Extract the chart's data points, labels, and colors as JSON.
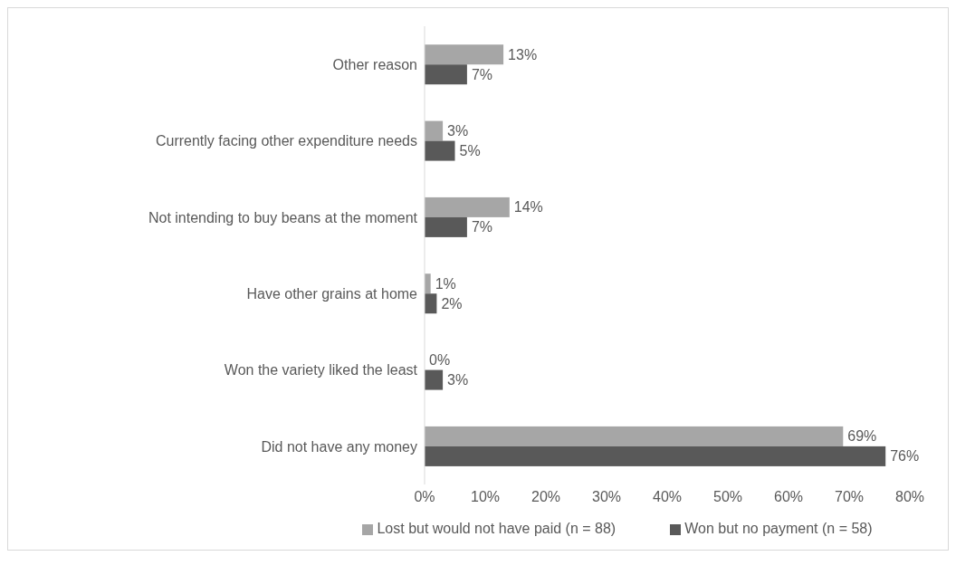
{
  "chart_data": {
    "type": "bar",
    "orientation": "horizontal",
    "categories": [
      "Other reason",
      "Currently facing other expenditure needs",
      "Not intending to buy beans at the moment",
      "Have other grains at home",
      "Won the variety liked the least",
      "Did not have any money"
    ],
    "series": [
      {
        "name": "Lost but would not have paid (n = 88)",
        "color": "#a6a6a6",
        "values": [
          13,
          3,
          14,
          1,
          0,
          69
        ],
        "value_labels": [
          "13%",
          "3%",
          "14%",
          "1%",
          "0%",
          "69%"
        ]
      },
      {
        "name": "Won but no payment (n = 58)",
        "color": "#595959",
        "values": [
          7,
          5,
          7,
          2,
          3,
          76
        ],
        "value_labels": [
          "7%",
          "5%",
          "7%",
          "2%",
          "3%",
          "76%"
        ]
      }
    ],
    "xlim": [
      0,
      80
    ],
    "xticks": [
      {
        "value": 0,
        "label": "0%"
      },
      {
        "value": 10,
        "label": "10%"
      },
      {
        "value": 20,
        "label": "20%"
      },
      {
        "value": 30,
        "label": "30%"
      },
      {
        "value": 40,
        "label": "40%"
      },
      {
        "value": 50,
        "label": "50%"
      },
      {
        "value": 60,
        "label": "60%"
      },
      {
        "value": 70,
        "label": "70%"
      },
      {
        "value": 80,
        "label": "80%"
      }
    ],
    "grid": false,
    "legend": "bottom"
  }
}
